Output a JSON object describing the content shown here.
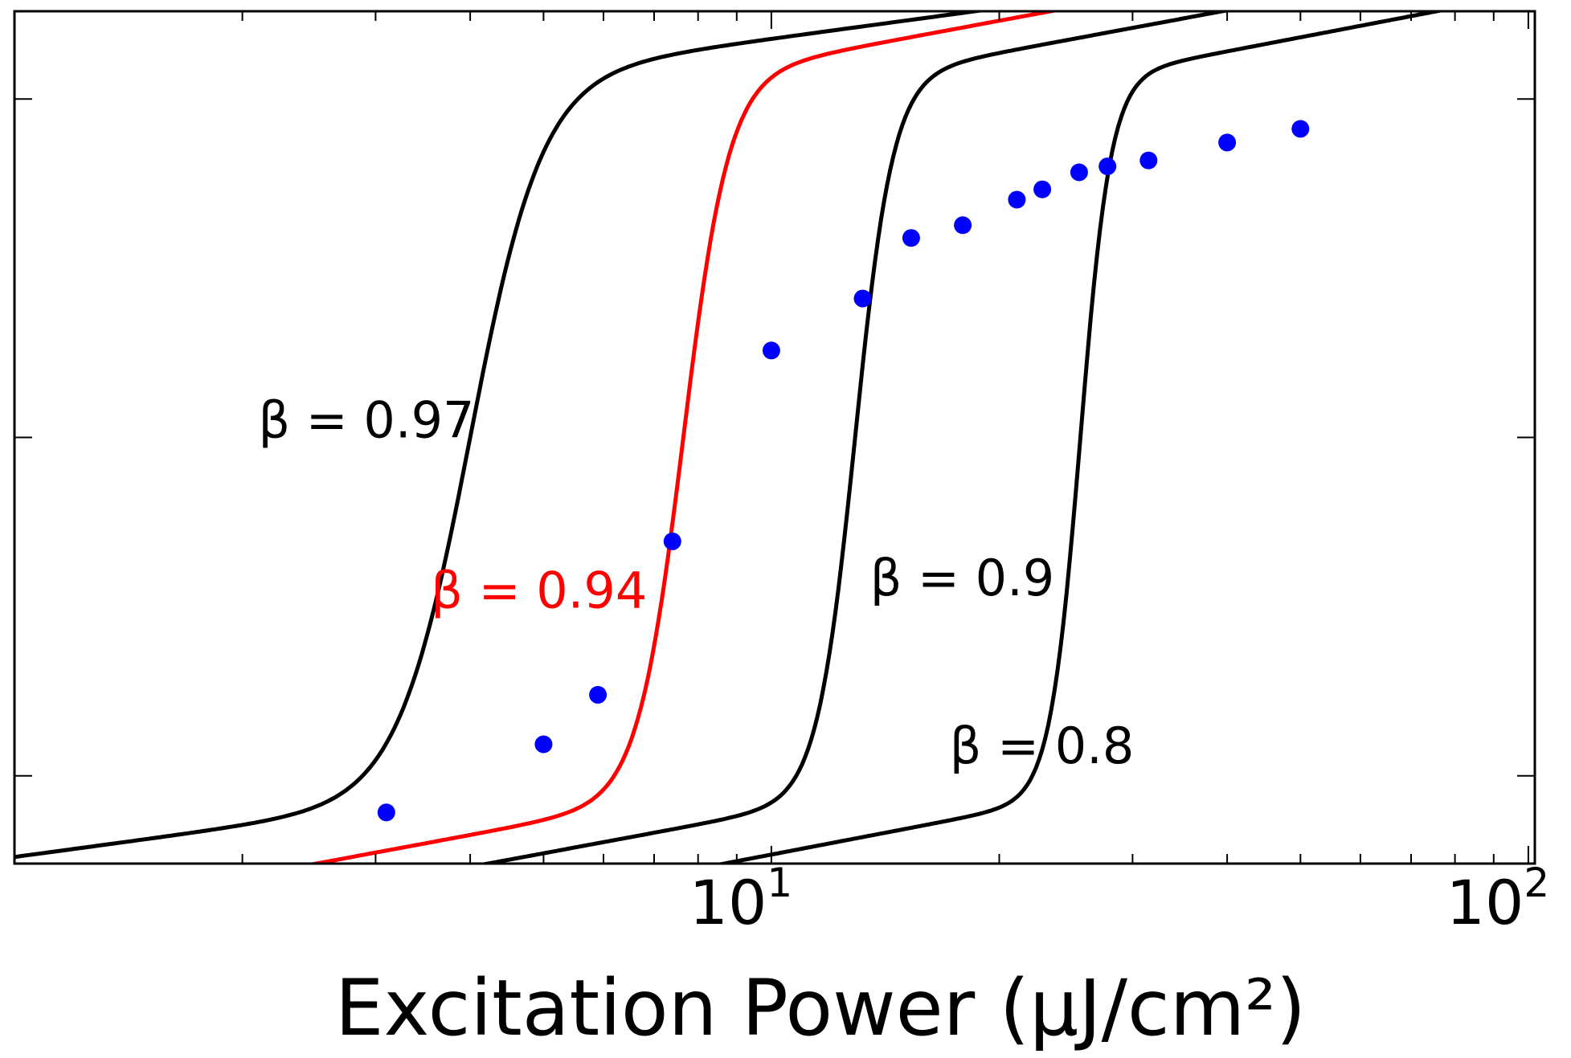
{
  "chart_data": {
    "type": "line",
    "title": "",
    "xlabel": "Excitation Power (μJ/cm²)",
    "ylabel": "",
    "xscale": "log",
    "xlim": [
      1,
      102
    ],
    "ylim": [
      0,
      1
    ],
    "grid": false,
    "x_ticks": [
      10,
      100
    ],
    "x_tick_labels": [
      {
        "base": "10",
        "exp": "1"
      },
      {
        "base": "10",
        "exp": "2"
      }
    ],
    "y_ticks": [
      0.103,
      0.5,
      0.897
    ],
    "colors": {
      "black": "#000000",
      "red": "#ff0000",
      "blue": "#0000ff"
    },
    "series": [
      {
        "name": "β = 0.97",
        "type": "line",
        "color": "#000000",
        "x0": 4.0,
        "w": 0.095,
        "k": 0.12
      },
      {
        "name": "β = 0.94",
        "type": "line",
        "color": "#ff0000",
        "x0": 7.65,
        "w": 0.06,
        "k": 0.165
      },
      {
        "name": "β = 0.9",
        "type": "line",
        "color": "#000000",
        "x0": 12.9,
        "w": 0.05,
        "k": 0.165
      },
      {
        "name": "β = 0.8",
        "type": "line",
        "color": "#000000",
        "x0": 25.6,
        "w": 0.04,
        "k": 0.17
      },
      {
        "name": "",
        "type": "scatter",
        "color": "#0000ff",
        "x": [
          3.1,
          5.0,
          5.9,
          7.4,
          10.0,
          13.2,
          15.3,
          17.9,
          21.1,
          22.8,
          25.5,
          27.8,
          31.5,
          40.0,
          50.0
        ],
        "y": [
          0.06,
          0.14,
          0.198,
          0.378,
          0.602,
          0.663,
          0.734,
          0.749,
          0.779,
          0.791,
          0.811,
          0.818,
          0.825,
          0.846,
          0.862
        ]
      }
    ],
    "annotations": [
      {
        "text": "β = 0.97",
        "color": "#000000",
        "x": 2.1,
        "y": 0.5
      },
      {
        "text": "β = 0.94",
        "color": "#ff0000",
        "x": 3.55,
        "y": 0.3
      },
      {
        "text": "β = 0.9",
        "color": "#000000",
        "x": 13.5,
        "y": 0.315
      },
      {
        "text": "β = 0.8",
        "color": "#000000",
        "x": 17.2,
        "y": 0.118
      }
    ]
  }
}
